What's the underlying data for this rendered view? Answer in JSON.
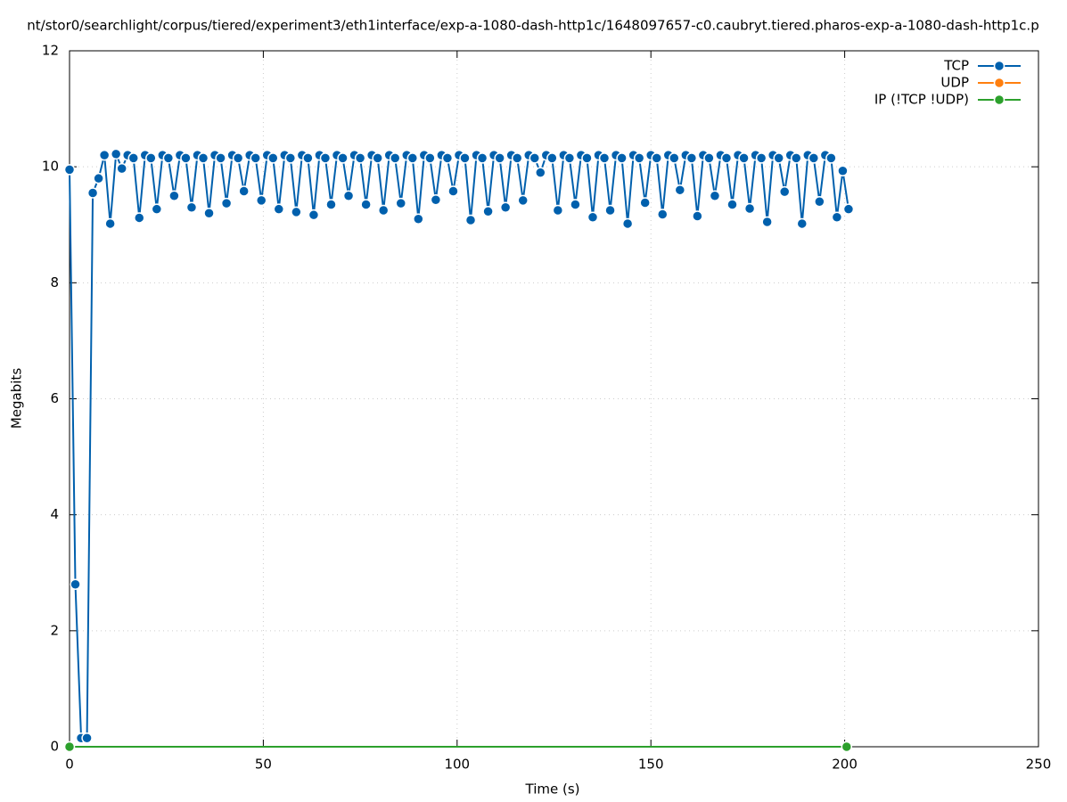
{
  "chart_data": {
    "type": "line",
    "title": "nt/stor0/searchlight/corpus/tiered/experiment3/eth1interface/exp-a-1080-dash-http1c/1648097657-c0.caubryt.tiered.pharos-exp-a-1080-dash-http1c.p",
    "x_label": "Time (s)",
    "y_label": "Megabits",
    "xlim": [
      0,
      250
    ],
    "xticks": [
      0,
      50,
      100,
      150,
      200,
      250
    ],
    "ylim": [
      0,
      12
    ],
    "yticks": [
      0,
      2,
      4,
      6,
      8,
      10,
      12
    ],
    "grid": true,
    "legend": "top-right",
    "series": [
      {
        "name": "TCP",
        "color": "#0060ad",
        "x": [
          0,
          1.5,
          3,
          4.5,
          6,
          7.5,
          9,
          10.5,
          12,
          13.5,
          15,
          16.5,
          18,
          19.5,
          21,
          22.5,
          24,
          25.5,
          27,
          28.5,
          30,
          31.5,
          33,
          34.5,
          36,
          37.5,
          39,
          40.5,
          42,
          43.5,
          45,
          46.5,
          48,
          49.5,
          51,
          52.5,
          54,
          55.5,
          57,
          58.5,
          60,
          61.5,
          63,
          64.5,
          66,
          67.5,
          69,
          70.5,
          72,
          73.5,
          75,
          76.5,
          78,
          79.5,
          81,
          82.5,
          84,
          85.5,
          87,
          88.5,
          90,
          91.5,
          93,
          94.5,
          96,
          97.5,
          99,
          100.5,
          102,
          103.5,
          105,
          106.5,
          108,
          109.5,
          111,
          112.5,
          114,
          115.5,
          117,
          118.5,
          120,
          121.5,
          123,
          124.5,
          126,
          127.5,
          129,
          130.5,
          132,
          133.5,
          135,
          136.5,
          138,
          139.5,
          141,
          142.5,
          144,
          145.5,
          147,
          148.5,
          150,
          151.5,
          153,
          154.5,
          156,
          157.5,
          159,
          160.5,
          162,
          163.5,
          165,
          166.5,
          168,
          169.5,
          171,
          172.5,
          174,
          175.5,
          177,
          178.5,
          180,
          181.5,
          183,
          184.5,
          186,
          187.5,
          189,
          190.5,
          192,
          193.5,
          195,
          196.5,
          198,
          199.5,
          201
        ],
        "values": [
          9.95,
          2.8,
          0.15,
          0.15,
          9.55,
          9.8,
          10.2,
          9.02,
          10.22,
          9.97,
          10.2,
          10.15,
          9.12,
          10.2,
          10.15,
          9.27,
          10.2,
          10.15,
          9.5,
          10.2,
          10.15,
          9.3,
          10.2,
          10.15,
          9.2,
          10.2,
          10.15,
          9.37,
          10.2,
          10.15,
          9.58,
          10.2,
          10.15,
          9.42,
          10.2,
          10.15,
          9.27,
          10.2,
          10.15,
          9.22,
          10.2,
          10.15,
          9.17,
          10.2,
          10.15,
          9.35,
          10.2,
          10.15,
          9.5,
          10.2,
          10.15,
          9.35,
          10.2,
          10.15,
          9.25,
          10.2,
          10.15,
          9.37,
          10.2,
          10.15,
          9.1,
          10.2,
          10.15,
          9.43,
          10.2,
          10.15,
          9.58,
          10.2,
          10.15,
          9.08,
          10.2,
          10.15,
          9.23,
          10.2,
          10.15,
          9.3,
          10.2,
          10.15,
          9.42,
          10.2,
          10.15,
          9.9,
          10.2,
          10.15,
          9.25,
          10.2,
          10.15,
          9.35,
          10.2,
          10.15,
          9.13,
          10.2,
          10.15,
          9.25,
          10.2,
          10.15,
          9.02,
          10.2,
          10.15,
          9.38,
          10.2,
          10.15,
          9.18,
          10.2,
          10.15,
          9.6,
          10.2,
          10.15,
          9.15,
          10.2,
          10.15,
          9.5,
          10.2,
          10.15,
          9.35,
          10.2,
          10.15,
          9.28,
          10.2,
          10.15,
          9.05,
          10.2,
          10.15,
          9.57,
          10.2,
          10.15,
          9.02,
          10.2,
          10.15,
          9.4,
          10.2,
          10.15,
          9.13,
          9.93,
          9.27
        ]
      },
      {
        "name": "UDP",
        "color": "#ff7f0e",
        "x": [],
        "values": []
      },
      {
        "name": "IP (!TCP  !UDP)",
        "color": "#2ca02c",
        "x": [
          0,
          200.5
        ],
        "values": [
          0,
          0
        ]
      }
    ]
  }
}
